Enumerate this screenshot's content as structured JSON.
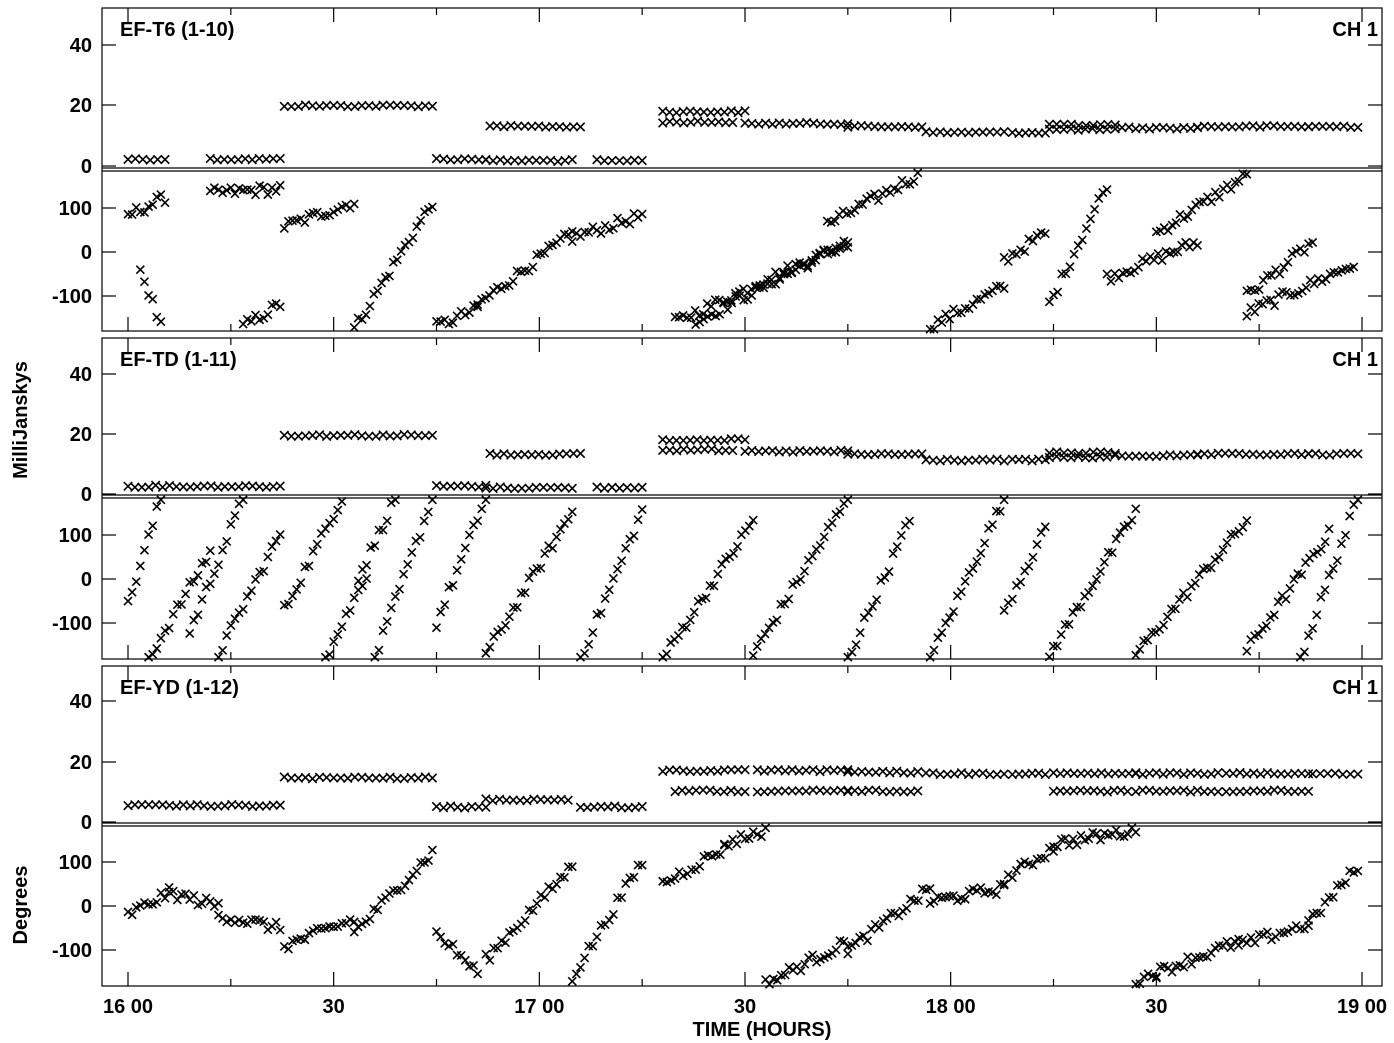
{
  "chart_data": {
    "type": "scatter",
    "y_axis_label": "MilliJanskys",
    "y_axis_label_lower": "Degrees",
    "x_axis_label": "TIME (HOURS)",
    "x_ticks": [
      "16 00",
      "30",
      "17 00",
      "30",
      "18 00",
      "30",
      "19 00"
    ],
    "x_range_hours": [
      16.0,
      19.0
    ],
    "marker": "x",
    "panels": [
      {
        "baseline": "EF-T6 (1-10)",
        "channel": "CH 1",
        "amp_ticks": [
          "40",
          "20",
          "0"
        ],
        "amp_range": [
          -2,
          52
        ],
        "phase_ticks": [
          "100",
          "0",
          "-100"
        ],
        "phase_range": [
          -180,
          180
        ],
        "amp_segments": [
          {
            "x": [
              16.0,
              16.09
            ],
            "y": 1
          },
          {
            "x": [
              16.2,
              16.37
            ],
            "y": 1
          },
          {
            "x": [
              16.38,
              16.74
            ],
            "y": 19
          },
          {
            "x": [
              16.75,
              16.87
            ],
            "y": 1
          },
          {
            "x": [
              16.87,
              17.08
            ],
            "y": 0.5
          },
          {
            "x": [
              16.88,
              17.1
            ],
            "y": 12
          },
          {
            "x": [
              17.14,
              17.25
            ],
            "y": 0.5
          },
          {
            "x": [
              17.3,
              17.47
            ],
            "y": 13.5
          },
          {
            "x": [
              17.3,
              17.5
            ],
            "y": 17
          },
          {
            "x": [
              17.5,
              17.75
            ],
            "y": 13
          },
          {
            "x": [
              17.75,
              17.93
            ],
            "y": 12
          },
          {
            "x": [
              17.94,
              18.13
            ],
            "y": 10
          },
          {
            "x": [
              18.15,
              18.23
            ],
            "y": 10
          },
          {
            "x": [
              18.24,
              18.38
            ],
            "y": 11
          },
          {
            "x": [
              18.24,
              18.4
            ],
            "y": 12.5
          },
          {
            "x": [
              18.4,
              18.6
            ],
            "y": 11.5
          },
          {
            "x": [
              18.6,
              18.87
            ],
            "y": 12
          },
          {
            "x": [
              18.87,
              18.99
            ],
            "y": 12
          }
        ],
        "phase_segments": [
          {
            "x": [
              16.0,
              16.09
            ],
            "y": [
              80,
              120
            ]
          },
          {
            "x": [
              16.03,
              16.08
            ],
            "y": [
              -40,
              -170
            ]
          },
          {
            "x": [
              16.2,
              16.37
            ],
            "y": [
              130,
              140
            ]
          },
          {
            "x": [
              16.28,
              16.37
            ],
            "y": [
              -170,
              -120
            ]
          },
          {
            "x": [
              16.38,
              16.55
            ],
            "y": [
              55,
              110
            ]
          },
          {
            "x": [
              16.55,
              16.74
            ],
            "y": [
              -175,
              110
            ]
          },
          {
            "x": [
              16.75,
              16.85
            ],
            "y": [
              -170,
              -130
            ]
          },
          {
            "x": [
              16.85,
              17.08
            ],
            "y": [
              -120,
              40
            ]
          },
          {
            "x": [
              17.08,
              17.25
            ],
            "y": [
              30,
              80
            ]
          },
          {
            "x": [
              17.33,
              17.75
            ],
            "y": [
              -160,
              20
            ]
          },
          {
            "x": [
              17.38,
              17.75
            ],
            "y": [
              -160,
              20
            ]
          },
          {
            "x": [
              17.7,
              17.92
            ],
            "y": [
              60,
              170
            ]
          },
          {
            "x": [
              17.95,
              18.13
            ],
            "y": [
              -170,
              -80
            ]
          },
          {
            "x": [
              18.13,
              18.23
            ],
            "y": [
              -20,
              40
            ]
          },
          {
            "x": [
              18.24,
              18.38
            ],
            "y": [
              -120,
              150
            ]
          },
          {
            "x": [
              18.38,
              18.6
            ],
            "y": [
              -60,
              20
            ]
          },
          {
            "x": [
              18.5,
              18.72
            ],
            "y": [
              40,
              170
            ]
          },
          {
            "x": [
              18.72,
              18.98
            ],
            "y": [
              -140,
              -30
            ]
          },
          {
            "x": [
              18.72,
              18.88
            ],
            "y": [
              -100,
              20
            ]
          }
        ]
      },
      {
        "baseline": "EF-TD (1-11)",
        "channel": "CH 1",
        "amp_ticks": [
          "40",
          "20",
          "0"
        ],
        "amp_range": [
          -2,
          52
        ],
        "phase_ticks": [
          "100",
          "0",
          "-100"
        ],
        "phase_range": [
          -180,
          180
        ],
        "amp_segments": [
          {
            "x": [
              16.0,
              16.37
            ],
            "y": 1
          },
          {
            "x": [
              16.38,
              16.74
            ],
            "y": 18.5
          },
          {
            "x": [
              16.75,
              16.87
            ],
            "y": 1
          },
          {
            "x": [
              16.87,
              17.08
            ],
            "y": 0.5
          },
          {
            "x": [
              16.88,
              17.1
            ],
            "y": 12
          },
          {
            "x": [
              17.14,
              17.25
            ],
            "y": 0.5
          },
          {
            "x": [
              17.3,
              17.47
            ],
            "y": 13.5
          },
          {
            "x": [
              17.3,
              17.5
            ],
            "y": 17
          },
          {
            "x": [
              17.5,
              17.75
            ],
            "y": 13
          },
          {
            "x": [
              17.75,
              17.93
            ],
            "y": 12
          },
          {
            "x": [
              17.94,
              18.13
            ],
            "y": 10
          },
          {
            "x": [
              18.15,
              18.23
            ],
            "y": 10
          },
          {
            "x": [
              18.24,
              18.38
            ],
            "y": 11
          },
          {
            "x": [
              18.24,
              18.4
            ],
            "y": 12.5
          },
          {
            "x": [
              18.4,
              18.6
            ],
            "y": 11.5
          },
          {
            "x": [
              18.6,
              18.87
            ],
            "y": 12
          },
          {
            "x": [
              18.87,
              18.99
            ],
            "y": 12
          }
        ],
        "phase_segments": [
          {
            "x": [
              16.0,
              16.08
            ],
            "y": [
              -60,
              180
            ]
          },
          {
            "x": [
              16.05,
              16.2
            ],
            "y": [
              -180,
              60
            ]
          },
          {
            "x": [
              16.15,
              16.28
            ],
            "y": [
              -120,
              180
            ]
          },
          {
            "x": [
              16.22,
              16.37
            ],
            "y": [
              -170,
              100
            ]
          },
          {
            "x": [
              16.38,
              16.52
            ],
            "y": [
              -70,
              180
            ]
          },
          {
            "x": [
              16.48,
              16.58
            ],
            "y": [
              -180,
              10
            ]
          },
          {
            "x": [
              16.56,
              16.65
            ],
            "y": [
              0,
              180
            ]
          },
          {
            "x": [
              16.6,
              16.74
            ],
            "y": [
              -180,
              180
            ]
          },
          {
            "x": [
              16.75,
              16.87
            ],
            "y": [
              -100,
              180
            ]
          },
          {
            "x": [
              16.87,
              17.08
            ],
            "y": [
              -170,
              150
            ]
          },
          {
            "x": [
              17.1,
              17.25
            ],
            "y": [
              -180,
              150
            ]
          },
          {
            "x": [
              17.3,
              17.52
            ],
            "y": [
              -180,
              130
            ]
          },
          {
            "x": [
              17.52,
              17.75
            ],
            "y": [
              -170,
              180
            ]
          },
          {
            "x": [
              17.75,
              17.9
            ],
            "y": [
              -180,
              130
            ]
          },
          {
            "x": [
              17.95,
              18.13
            ],
            "y": [
              -180,
              180
            ]
          },
          {
            "x": [
              18.13,
              18.23
            ],
            "y": [
              -70,
              110
            ]
          },
          {
            "x": [
              18.24,
              18.45
            ],
            "y": [
              -170,
              150
            ]
          },
          {
            "x": [
              18.45,
              18.72
            ],
            "y": [
              -170,
              130
            ]
          },
          {
            "x": [
              18.72,
              18.92
            ],
            "y": [
              -160,
              100
            ]
          },
          {
            "x": [
              18.85,
              18.99
            ],
            "y": [
              -180,
              180
            ]
          }
        ]
      },
      {
        "baseline": "EF-YD (1-12)",
        "channel": "CH 1",
        "amp_ticks": [
          "40",
          "20",
          "0"
        ],
        "amp_range": [
          -2,
          52
        ],
        "phase_ticks": [
          "100",
          "0",
          "-100"
        ],
        "phase_range": [
          -180,
          180
        ],
        "amp_segments": [
          {
            "x": [
              16.0,
              16.37
            ],
            "y": 4
          },
          {
            "x": [
              16.38,
              16.74
            ],
            "y": 13.5
          },
          {
            "x": [
              16.75,
              16.87
            ],
            "y": 3.5
          },
          {
            "x": [
              16.87,
              17.07
            ],
            "y": 6
          },
          {
            "x": [
              17.1,
              17.25
            ],
            "y": 3.5
          },
          {
            "x": [
              17.3,
              17.5
            ],
            "y": 16
          },
          {
            "x": [
              17.33,
              17.5
            ],
            "y": 9
          },
          {
            "x": [
              17.53,
              17.75
            ],
            "y": 16
          },
          {
            "x": [
              17.53,
              17.75
            ],
            "y": 9
          },
          {
            "x": [
              17.75,
              17.92
            ],
            "y": 15.5
          },
          {
            "x": [
              17.75,
              17.92
            ],
            "y": 9
          },
          {
            "x": [
              17.94,
              18.13
            ],
            "y": 15
          },
          {
            "x": [
              18.15,
              18.23
            ],
            "y": 15
          },
          {
            "x": [
              18.25,
              18.45
            ],
            "y": 15
          },
          {
            "x": [
              18.25,
              18.43
            ],
            "y": 9
          },
          {
            "x": [
              18.45,
              18.65
            ],
            "y": 15
          },
          {
            "x": [
              18.45,
              18.65
            ],
            "y": 9
          },
          {
            "x": [
              18.67,
              18.87
            ],
            "y": 15
          },
          {
            "x": [
              18.67,
              18.87
            ],
            "y": 9
          },
          {
            "x": [
              18.88,
              18.99
            ],
            "y": 15
          }
        ],
        "phase_segments": [
          {
            "x": [
              16.0,
              16.1
            ],
            "y": [
              -20,
              30
            ]
          },
          {
            "x": [
              16.1,
              16.22
            ],
            "y": [
              30,
              0
            ]
          },
          {
            "x": [
              16.22,
              16.37
            ],
            "y": [
              -20,
              -50
            ]
          },
          {
            "x": [
              16.38,
              16.55
            ],
            "y": [
              -90,
              -30
            ]
          },
          {
            "x": [
              16.55,
              16.74
            ],
            "y": [
              -60,
              120
            ]
          },
          {
            "x": [
              16.75,
              16.85
            ],
            "y": [
              -60,
              -150
            ]
          },
          {
            "x": [
              16.87,
              17.08
            ],
            "y": [
              -120,
              90
            ]
          },
          {
            "x": [
              17.08,
              17.25
            ],
            "y": [
              -160,
              100
            ]
          },
          {
            "x": [
              17.3,
              17.45
            ],
            "y": [
              50,
              130
            ]
          },
          {
            "x": [
              17.45,
              17.55
            ],
            "y": [
              140,
              170
            ]
          },
          {
            "x": [
              17.55,
              17.75
            ],
            "y": [
              -175,
              -80
            ]
          },
          {
            "x": [
              17.75,
              17.95
            ],
            "y": [
              -100,
              40
            ]
          },
          {
            "x": [
              17.95,
              18.13
            ],
            "y": [
              10,
              40
            ]
          },
          {
            "x": [
              18.13,
              18.25
            ],
            "y": [
              60,
              130
            ]
          },
          {
            "x": [
              18.25,
              18.45
            ],
            "y": [
              140,
              170
            ]
          },
          {
            "x": [
              18.45,
              18.5
            ],
            "y": [
              -170,
              -150
            ]
          },
          {
            "x": [
              18.5,
              18.7
            ],
            "y": [
              -150,
              -80
            ]
          },
          {
            "x": [
              18.7,
              18.87
            ],
            "y": [
              -90,
              -40
            ]
          },
          {
            "x": [
              18.87,
              18.99
            ],
            "y": [
              -40,
              90
            ]
          }
        ]
      }
    ]
  }
}
